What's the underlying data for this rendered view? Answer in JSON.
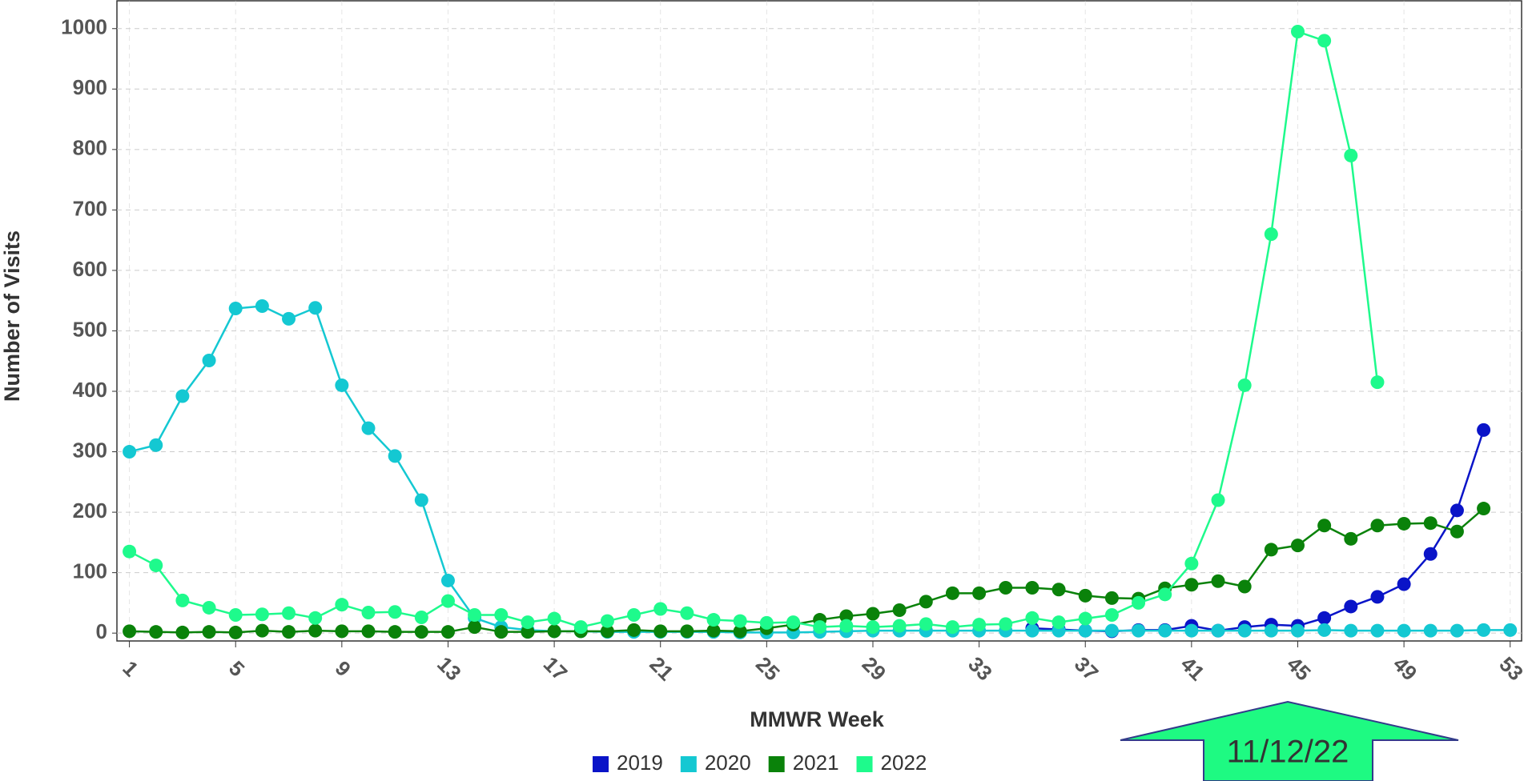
{
  "chart_data": {
    "type": "line",
    "x_label": "MMWR Week",
    "y_label": "Number of Visits",
    "annotation": "11/12/22",
    "x": [
      1,
      2,
      3,
      4,
      5,
      6,
      7,
      8,
      9,
      10,
      11,
      12,
      13,
      14,
      15,
      16,
      17,
      18,
      19,
      20,
      21,
      22,
      23,
      24,
      25,
      26,
      27,
      28,
      29,
      30,
      31,
      32,
      33,
      34,
      35,
      36,
      37,
      38,
      39,
      40,
      41,
      42,
      43,
      44,
      45,
      46,
      47,
      48,
      49,
      50,
      51,
      52,
      53
    ],
    "xlim": [
      0.53,
      53.43
    ],
    "xticks": [
      1,
      5,
      9,
      13,
      17,
      21,
      25,
      29,
      33,
      37,
      41,
      45,
      49,
      53
    ],
    "ylim": [
      -13,
      1046
    ],
    "yticks": [
      0,
      100,
      200,
      300,
      400,
      500,
      600,
      700,
      800,
      900,
      1000
    ],
    "grid": true,
    "legend": "bottom",
    "series": [
      {
        "name": "2019",
        "color": "#0a14c8",
        "values": [
          null,
          null,
          null,
          null,
          null,
          null,
          null,
          null,
          null,
          null,
          null,
          null,
          null,
          null,
          null,
          null,
          null,
          null,
          null,
          null,
          null,
          null,
          null,
          null,
          null,
          null,
          null,
          null,
          null,
          null,
          null,
          null,
          null,
          null,
          8,
          6,
          4,
          3,
          5,
          5,
          12,
          4,
          10,
          14,
          12,
          25,
          44,
          60,
          81,
          131,
          203,
          336,
          null
        ]
      },
      {
        "name": "2020",
        "color": "#14c8d2",
        "values": [
          300,
          311,
          392,
          451,
          537,
          541,
          520,
          538,
          410,
          339,
          293,
          220,
          87,
          25,
          10,
          5,
          3,
          3,
          2,
          2,
          2,
          2,
          2,
          1,
          1,
          1,
          2,
          3,
          4,
          4,
          4,
          4,
          4,
          4,
          4,
          4,
          4,
          4,
          4,
          4,
          4,
          4,
          4,
          4,
          4,
          5,
          4,
          4,
          4,
          4,
          4,
          5,
          5
        ]
      },
      {
        "name": "2021",
        "color": "#0a820a",
        "values": [
          3,
          2,
          1,
          2,
          1,
          4,
          2,
          4,
          3,
          3,
          2,
          2,
          2,
          10,
          2,
          2,
          3,
          3,
          3,
          5,
          3,
          3,
          4,
          3,
          8,
          14,
          22,
          28,
          32,
          38,
          52,
          66,
          66,
          75,
          75,
          72,
          62,
          58,
          57,
          74,
          80,
          86,
          77,
          138,
          145,
          178,
          156,
          178,
          181,
          182,
          168,
          206,
          null
        ]
      },
      {
        "name": "2022",
        "color": "#1efa8c",
        "values": [
          135,
          112,
          54,
          42,
          30,
          31,
          33,
          25,
          47,
          34,
          35,
          26,
          53,
          30,
          30,
          18,
          24,
          10,
          20,
          30,
          40,
          33,
          22,
          20,
          17,
          18,
          10,
          12,
          10,
          12,
          15,
          10,
          14,
          15,
          25,
          18,
          24,
          30,
          50,
          64,
          115,
          220,
          410,
          660,
          995,
          980,
          790,
          415,
          null,
          null,
          null,
          null,
          null
        ]
      }
    ]
  }
}
